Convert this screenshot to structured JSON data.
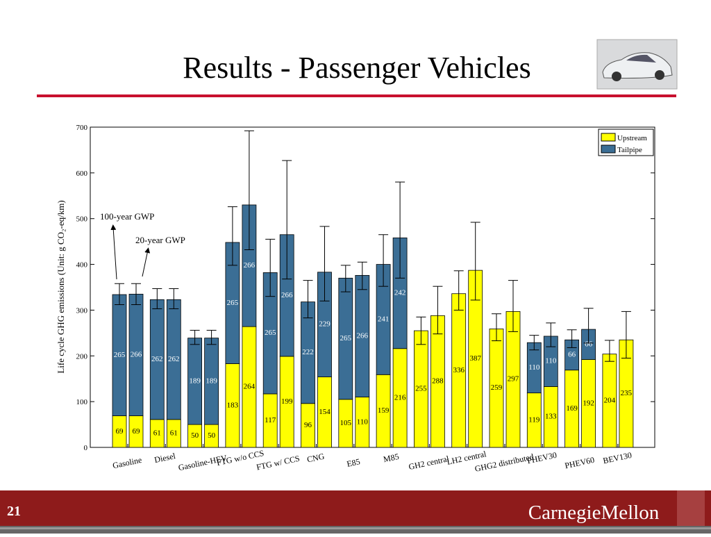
{
  "header": {
    "title": "Results - Passenger Vehicles"
  },
  "footer": {
    "slide_number": "21",
    "logo": "CarnegieMellon"
  },
  "chart_data": {
    "type": "stacked_bar_pairs",
    "ylabel": "Life cycle GHG emissions (Unit: g CO₂-eq/km)",
    "categories": [
      "Gasoline",
      "Diesel",
      "Gasoline-HEV",
      "FTG w/o CCS",
      "FTG w/ CCS",
      "CNG",
      "E85",
      "M85",
      "GH2 central",
      "LH2 central",
      "GHG2 distributed",
      "PHEV30",
      "PHEV60",
      "BEV130"
    ],
    "series": [
      {
        "name": "Upstream",
        "color": "#ffff00",
        "label_color": "#000000",
        "values": [
          [
            69,
            69
          ],
          [
            61,
            61
          ],
          [
            50,
            50
          ],
          [
            183,
            264
          ],
          [
            117,
            199
          ],
          [
            96,
            154
          ],
          [
            105,
            110
          ],
          [
            159,
            216
          ],
          [
            255,
            288
          ],
          [
            336,
            387
          ],
          [
            259,
            297
          ],
          [
            119,
            133
          ],
          [
            169,
            192
          ],
          [
            204,
            235
          ]
        ]
      },
      {
        "name": "Tailpipe",
        "color": "#3b6e95",
        "label_color": "#ffffff",
        "values": [
          [
            265,
            266
          ],
          [
            262,
            262
          ],
          [
            189,
            189
          ],
          [
            265,
            266
          ],
          [
            265,
            266
          ],
          [
            222,
            229
          ],
          [
            265,
            266
          ],
          [
            241,
            242
          ],
          [
            null,
            null
          ],
          [
            null,
            null
          ],
          [
            null,
            null
          ],
          [
            110,
            110
          ],
          [
            66,
            66
          ],
          [
            null,
            null
          ]
        ]
      }
    ],
    "error_high": [
      [
        358,
        358
      ],
      [
        347,
        347
      ],
      [
        256,
        256
      ],
      [
        526,
        692
      ],
      [
        455,
        627
      ],
      [
        365,
        483
      ],
      [
        398,
        405
      ],
      [
        465,
        580
      ],
      [
        285,
        352
      ],
      [
        386,
        492
      ],
      [
        292,
        365
      ],
      [
        245,
        272
      ],
      [
        257,
        304
      ],
      [
        234,
        297
      ]
    ],
    "error_low": [
      [
        312,
        312
      ],
      [
        303,
        303
      ],
      [
        225,
        225
      ],
      [
        398,
        432
      ],
      [
        330,
        368
      ],
      [
        283,
        320
      ],
      [
        340,
        345
      ],
      [
        352,
        370
      ],
      [
        225,
        248
      ],
      [
        300,
        322
      ],
      [
        233,
        253
      ],
      [
        213,
        220
      ],
      [
        218,
        228
      ],
      [
        188,
        195
      ]
    ],
    "ylim": [
      0,
      700
    ],
    "yticks": [
      0,
      100,
      200,
      300,
      400,
      500,
      600,
      700
    ],
    "legend": "upper right",
    "annotations": [
      "100-year GWP",
      "20-year GWP"
    ]
  }
}
